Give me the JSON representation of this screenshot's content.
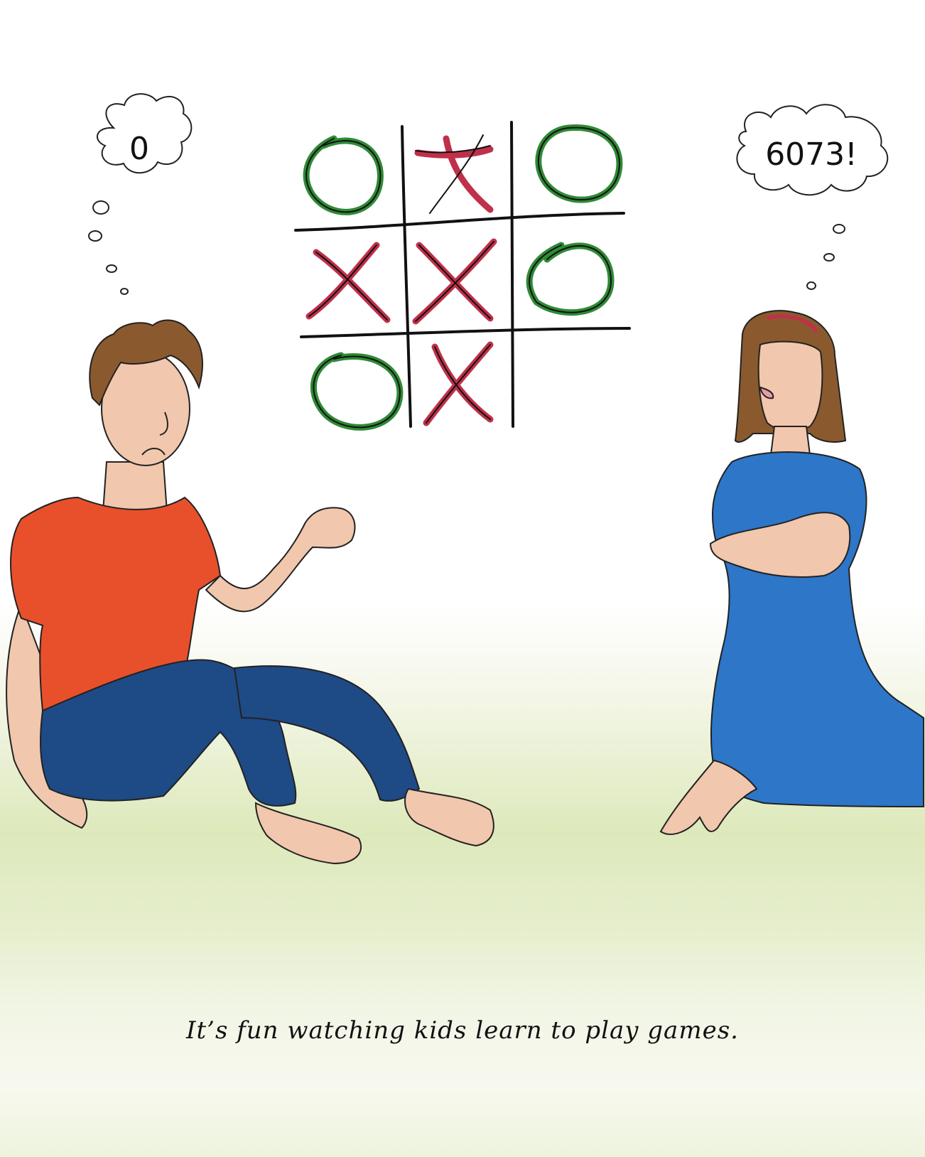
{
  "left_thought": {
    "text": "0"
  },
  "right_thought": {
    "text": "6073!"
  },
  "caption": "It’s fun watching kids learn to play games.",
  "board": [
    [
      "O",
      "X",
      "O"
    ],
    [
      "X",
      "X",
      "O"
    ],
    [
      "O",
      "X",
      ""
    ]
  ],
  "colors": {
    "o_mark": "#2f8a36",
    "x_mark": "#c0304a",
    "boy_shirt": "#e8502c",
    "boy_jeans": "#1e4a86",
    "girl_dress": "#2d76c8",
    "hair": "#8a5a2e",
    "skin": "#f1c7ad",
    "grass": "#dde9bb"
  }
}
